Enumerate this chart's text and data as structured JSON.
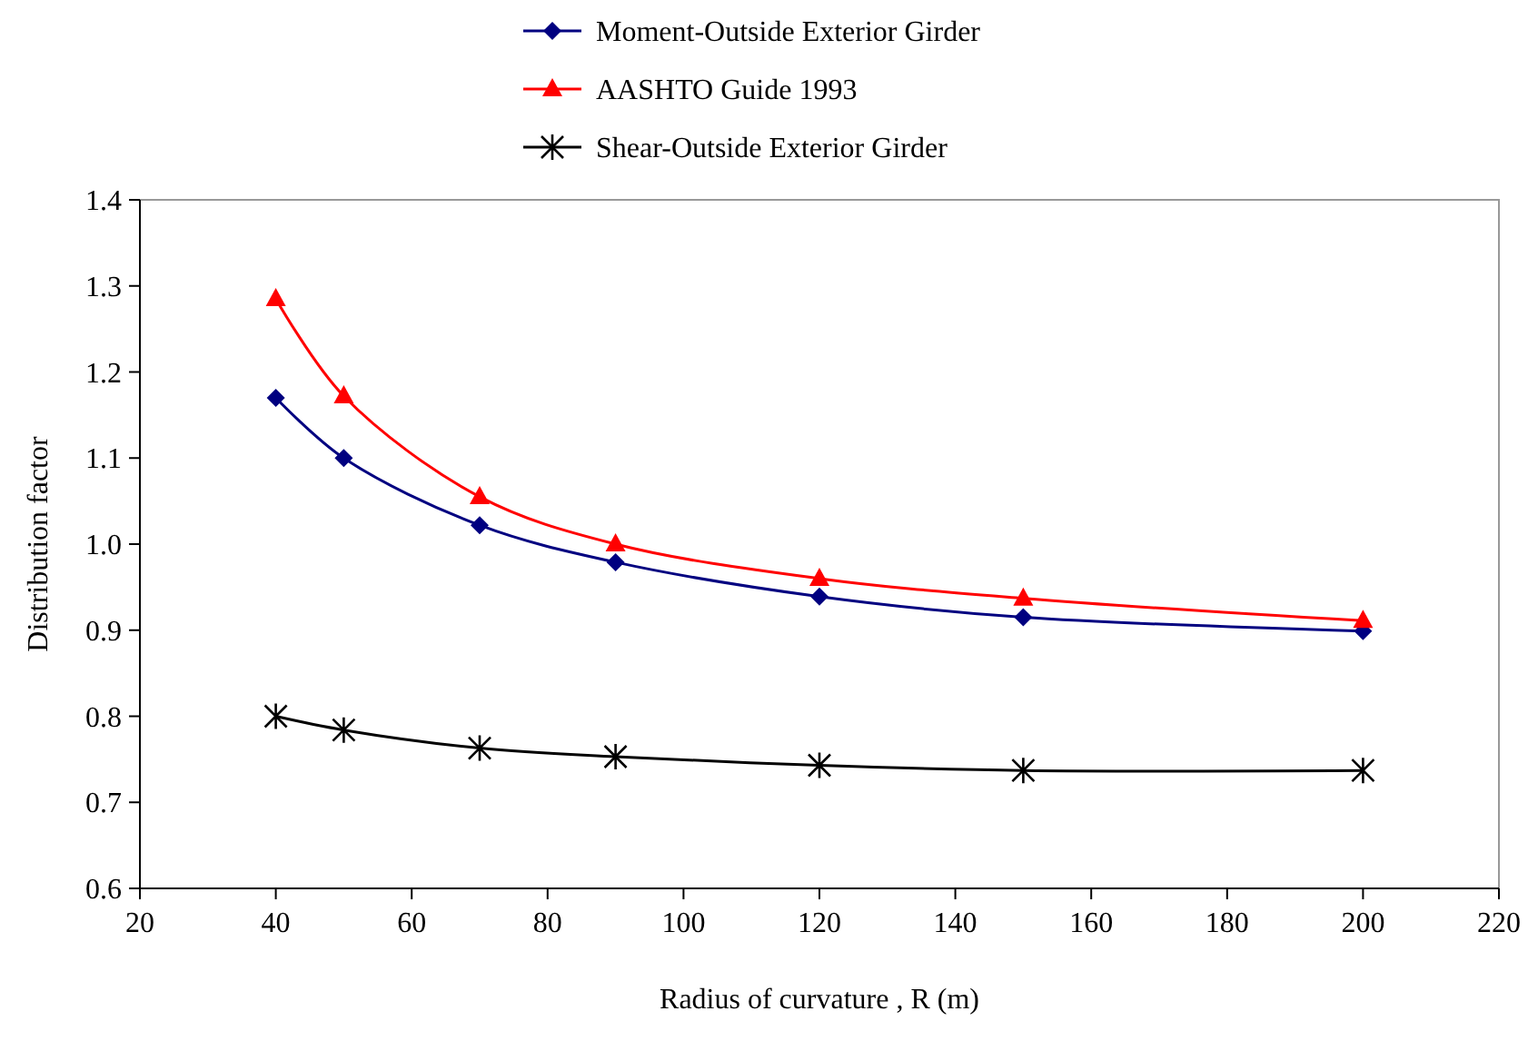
{
  "chart_data": {
    "type": "line",
    "xlabel": "Radius of curvature , R (m)",
    "ylabel": "Distribution factor",
    "x": [
      40,
      50,
      70,
      90,
      120,
      150,
      200
    ],
    "xlim": [
      20,
      220
    ],
    "xticks": [
      20,
      40,
      60,
      80,
      100,
      120,
      140,
      160,
      180,
      200,
      220
    ],
    "ylim": [
      0.6,
      1.4
    ],
    "yticks": [
      {
        "value": 0.6,
        "label": "0.6"
      },
      {
        "value": 0.7,
        "label": "0.7"
      },
      {
        "value": 0.8,
        "label": "0.8"
      },
      {
        "value": 0.9,
        "label": "0.9"
      },
      {
        "value": 1.0,
        "label": "1.0"
      },
      {
        "value": 1.1,
        "label": "1.1"
      },
      {
        "value": 1.2,
        "label": "1.2"
      },
      {
        "value": 1.3,
        "label": "1.3"
      },
      {
        "value": 1.4,
        "label": "1.4"
      }
    ],
    "grid": false,
    "legend": "top",
    "line_style": "solid",
    "series": [
      {
        "name": "Moment-Outside Exterior Girder",
        "color": "#000080",
        "marker": "diamond",
        "values": [
          1.17,
          1.1,
          1.022,
          0.979,
          0.939,
          0.915,
          0.899
        ]
      },
      {
        "name": "AASHTO Guide 1993",
        "color": "#ff0000",
        "marker": "triangle",
        "values": [
          1.285,
          1.172,
          1.055,
          1.0,
          0.96,
          0.937,
          0.911
        ]
      },
      {
        "name": "Shear-Outside Exterior Girder",
        "color": "#000000",
        "marker": "cross",
        "values": [
          0.8,
          0.784,
          0.763,
          0.753,
          0.743,
          0.737,
          0.737
        ]
      }
    ]
  }
}
